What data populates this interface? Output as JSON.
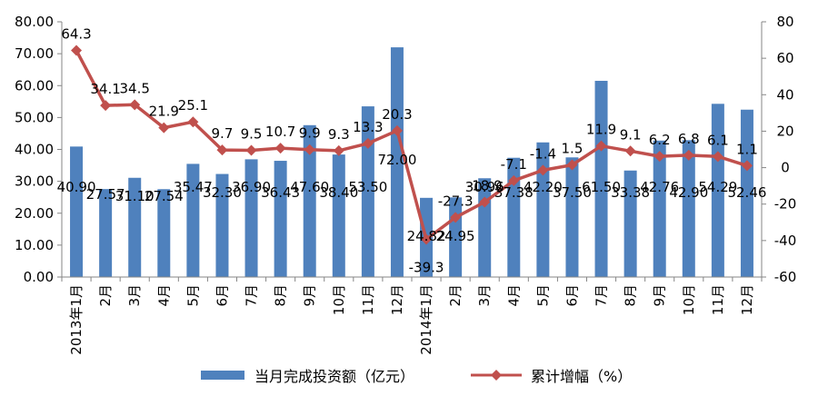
{
  "chart_data": {
    "type": "bar",
    "categories": [
      "2013年1月",
      "2月",
      "3月",
      "4月",
      "5月",
      "6月",
      "7月",
      "8月",
      "9月",
      "10月",
      "11月",
      "12月",
      "2014年1月",
      "2月",
      "3月",
      "4月",
      "5月",
      "6月",
      "7月",
      "8月",
      "9月",
      "10月",
      "11月",
      "12月"
    ],
    "series": [
      {
        "name": "当月完成投资额（亿元）",
        "type": "bar",
        "axis": "left",
        "color": "#4F81BD",
        "values": [
          40.9,
          27.57,
          31.1,
          27.54,
          35.47,
          32.3,
          36.9,
          36.43,
          47.6,
          38.4,
          53.5,
          72.0,
          24.82,
          24.95,
          30.96,
          37.38,
          42.2,
          37.5,
          61.5,
          33.38,
          42.76,
          42.9,
          54.29,
          52.46
        ],
        "labels": [
          "40.90",
          "27.57",
          "31.10",
          "27.54",
          "35.47",
          "32.30",
          "36.90",
          "36.43",
          "47.60",
          "38.40",
          "53.50",
          "72.00",
          "24.82",
          "24.95",
          "30.96",
          "37.38",
          "42.20",
          "37.50",
          "61.50",
          "33.38",
          "42.76",
          "42.90",
          "54.29",
          "52.46"
        ]
      },
      {
        "name": "累计增幅（%）",
        "type": "line",
        "axis": "right",
        "color": "#C0504D",
        "values": [
          64.3,
          34.1,
          34.5,
          21.9,
          25.1,
          9.7,
          9.5,
          10.7,
          9.9,
          9.3,
          13.3,
          20.3,
          -39.3,
          -27.3,
          -18.9,
          -7.1,
          -1.4,
          1.5,
          11.9,
          9.1,
          6.2,
          6.8,
          6.1,
          1.1
        ],
        "labels": [
          "64.3",
          "34.1",
          "34.5",
          "21.9",
          "25.1",
          "9.7",
          "9.5",
          "10.7",
          "9.9",
          "9.3",
          "13.3",
          "20.3",
          "-39.3",
          "-27.3",
          "-18.9",
          "-7.1",
          "-1.4",
          "1.5",
          "11.9",
          "9.1",
          "6.2",
          "6.8",
          "6.1",
          "1.1"
        ]
      }
    ],
    "y_left": {
      "ylim": [
        0,
        80
      ],
      "ticks": [
        "0.00",
        "10.00",
        "20.00",
        "30.00",
        "40.00",
        "50.00",
        "60.00",
        "70.00",
        "80.00"
      ]
    },
    "y_right": {
      "ylim": [
        -60,
        80
      ],
      "ticks": [
        "-60",
        "-40",
        "-20",
        "0",
        "20",
        "40",
        "60",
        "80"
      ]
    },
    "legend_position": "bottom",
    "grid": false
  }
}
